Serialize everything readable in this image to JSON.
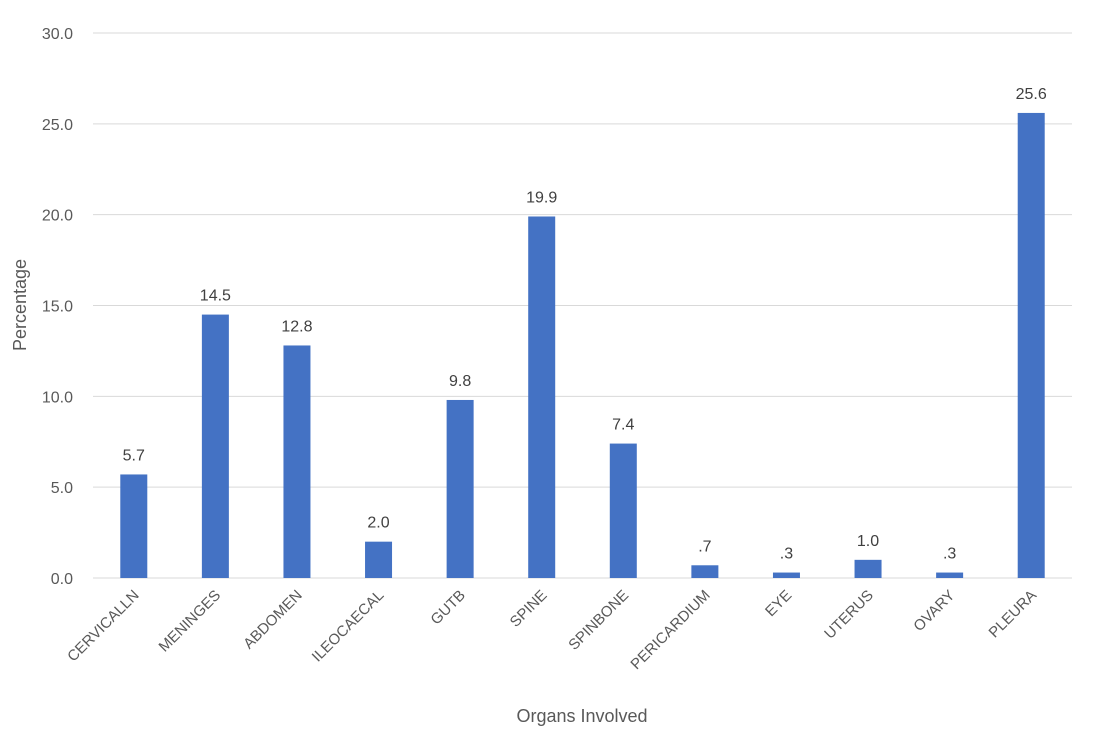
{
  "chart_data": {
    "type": "bar",
    "title": "",
    "xlabel": "Organs Involved",
    "ylabel": "Percentage",
    "ylim": [
      0,
      30
    ],
    "yticks": [
      0,
      5,
      10,
      15,
      20,
      25,
      30
    ],
    "ytick_labels": [
      "0.0",
      "5.0",
      "10.0",
      "15.0",
      "20.0",
      "25.0",
      "30.0"
    ],
    "grid": true,
    "legend": "none",
    "bar_color": "#4472c4",
    "categories": [
      "CERVICALLN",
      "MENINGES",
      "ABDOMEN",
      "ILEOCAECAL",
      "GUTB",
      "SPINE",
      "SPINBONE",
      "PERICARDIUM",
      "EYE",
      "UTERUS",
      "OVARY",
      "PLEURA"
    ],
    "values": [
      5.7,
      14.5,
      12.8,
      2.0,
      9.8,
      19.9,
      7.4,
      0.7,
      0.3,
      1.0,
      0.3,
      25.6
    ],
    "data_labels": [
      "5.7",
      "14.5",
      "12.8",
      "2.0",
      "9.8",
      "19.9",
      "7.4",
      ".7",
      ".3",
      "1.0",
      ".3",
      "25.6"
    ]
  }
}
